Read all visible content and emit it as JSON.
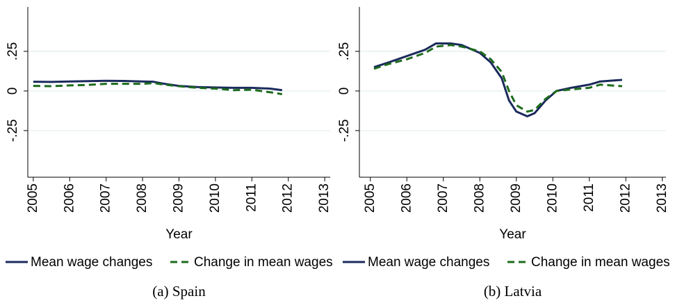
{
  "chart_data": [
    {
      "type": "line",
      "caption": "(a) Spain",
      "xlabel": "Year",
      "x": [
        2005.0,
        2005.5,
        2006.0,
        2006.5,
        2007.0,
        2007.5,
        2008.0,
        2008.3,
        2008.6,
        2009.0,
        2009.5,
        2010.0,
        2010.5,
        2011.0,
        2011.5,
        2011.83
      ],
      "series": [
        {
          "name": "Mean wage changes",
          "color": "#1b2a5c",
          "style": "solid",
          "values": [
            0.058,
            0.057,
            0.06,
            0.062,
            0.064,
            0.063,
            0.06,
            0.058,
            0.045,
            0.032,
            0.025,
            0.022,
            0.02,
            0.02,
            0.015,
            0.005
          ]
        },
        {
          "name": "Change in mean wages",
          "color": "#1c6b1c",
          "style": "dashed",
          "values": [
            0.032,
            0.03,
            0.035,
            0.038,
            0.045,
            0.045,
            0.045,
            0.05,
            0.04,
            0.03,
            0.02,
            0.015,
            0.005,
            0.008,
            -0.008,
            -0.02
          ]
        }
      ],
      "xlim": [
        2004.85,
        2013.15
      ],
      "xticks": [
        2005,
        2006,
        2007,
        2008,
        2009,
        2010,
        2011,
        2012,
        2013
      ],
      "ylim": [
        -0.544,
        0.53
      ],
      "yticks": [
        {
          "value": 0.25,
          "label": ".25"
        },
        0,
        {
          "value": -0.25,
          "label": "-.25"
        }
      ],
      "grid": true
    },
    {
      "type": "line",
      "caption": "(b) Latvia",
      "xlabel": "Year",
      "x": [
        2005.1,
        2005.5,
        2006.0,
        2006.5,
        2006.8,
        2007.2,
        2007.5,
        2008.0,
        2008.3,
        2008.6,
        2008.8,
        2009.0,
        2009.3,
        2009.5,
        2009.8,
        2010.1,
        2010.5,
        2011.0,
        2011.3,
        2011.9
      ],
      "series": [
        {
          "name": "Mean wage changes",
          "color": "#1b2a5c",
          "style": "solid",
          "values": [
            0.15,
            0.18,
            0.22,
            0.26,
            0.3,
            0.3,
            0.29,
            0.24,
            0.18,
            0.08,
            -0.06,
            -0.13,
            -0.16,
            -0.14,
            -0.06,
            0.0,
            0.02,
            0.04,
            0.06,
            0.07
          ]
        },
        {
          "name": "Change in mean wages",
          "color": "#1c6b1c",
          "style": "dashed",
          "values": [
            0.14,
            0.17,
            0.2,
            0.24,
            0.28,
            0.29,
            0.28,
            0.25,
            0.2,
            0.12,
            0.0,
            -0.09,
            -0.13,
            -0.12,
            -0.05,
            0.0,
            0.01,
            0.02,
            0.04,
            0.03
          ]
        }
      ],
      "xlim": [
        2004.7,
        2013.1
      ],
      "xticks": [
        2005,
        2006,
        2007,
        2008,
        2009,
        2010,
        2011,
        2012,
        2013
      ],
      "ylim": [
        -0.544,
        0.53
      ],
      "yticks": [
        {
          "value": 0.25,
          "label": ".25"
        },
        0,
        {
          "value": -0.25,
          "label": "-.25"
        }
      ],
      "grid": true
    }
  ]
}
